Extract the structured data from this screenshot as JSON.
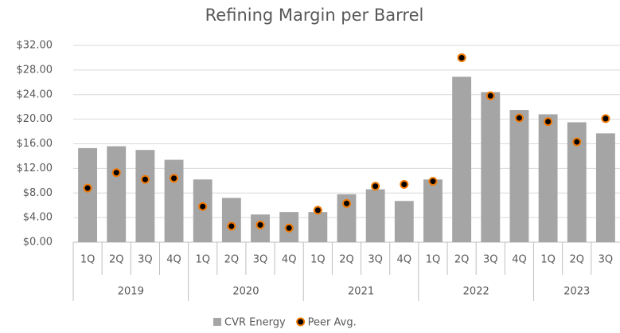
{
  "chart_data": {
    "type": "bar",
    "title": "Refining Margin per Barrel",
    "groups": [
      {
        "label": "2019",
        "categories": [
          "1Q",
          "2Q",
          "3Q",
          "4Q"
        ]
      },
      {
        "label": "2020",
        "categories": [
          "1Q",
          "2Q",
          "3Q",
          "4Q"
        ]
      },
      {
        "label": "2021",
        "categories": [
          "1Q",
          "2Q",
          "3Q",
          "4Q"
        ]
      },
      {
        "label": "2022",
        "categories": [
          "1Q",
          "2Q",
          "3Q",
          "4Q"
        ]
      },
      {
        "label": "2023",
        "categories": [
          "1Q",
          "2Q",
          "3Q"
        ]
      }
    ],
    "series": [
      {
        "name": "CVR Energy",
        "type": "bar",
        "color": "#a5a5a5",
        "values": [
          15.3,
          15.6,
          15.0,
          13.4,
          10.2,
          7.2,
          4.5,
          4.9,
          4.9,
          7.8,
          8.6,
          6.7,
          10.2,
          26.9,
          24.4,
          21.5,
          20.8,
          19.5,
          17.7
        ]
      },
      {
        "name": "Peer Avg.",
        "type": "scatter",
        "color": "#f07800",
        "values": [
          8.8,
          11.3,
          10.2,
          10.4,
          5.8,
          2.6,
          2.8,
          2.3,
          5.2,
          6.3,
          9.1,
          9.4,
          9.9,
          30.0,
          23.8,
          20.2,
          19.6,
          16.3,
          20.1
        ]
      }
    ],
    "ylim": [
      0,
      32
    ],
    "yticks": [
      {
        "value": 0,
        "label": "$0.00"
      },
      {
        "value": 4,
        "label": "$4.00"
      },
      {
        "value": 8,
        "label": "$8.00"
      },
      {
        "value": 12,
        "label": "$12.00"
      },
      {
        "value": 16,
        "label": "$16.00"
      },
      {
        "value": 20,
        "label": "$20.00"
      },
      {
        "value": 24,
        "label": "$24.00"
      },
      {
        "value": 28,
        "label": "$28.00"
      },
      {
        "value": 32,
        "label": "$32.00"
      }
    ],
    "grid": true,
    "legend": "bottom"
  }
}
